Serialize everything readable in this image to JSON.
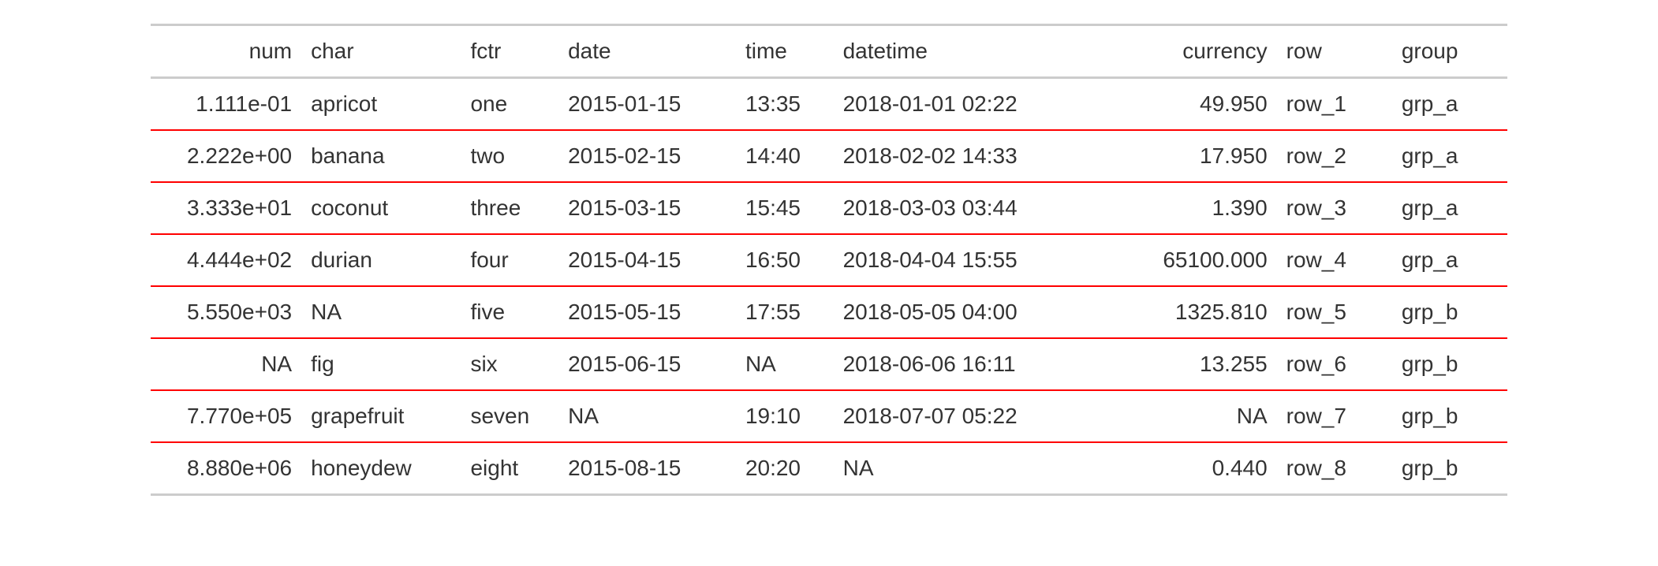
{
  "table": {
    "columns": [
      {
        "key": "num",
        "label": "num",
        "align": "right"
      },
      {
        "key": "char",
        "label": "char",
        "align": "left"
      },
      {
        "key": "fctr",
        "label": "fctr",
        "align": "left"
      },
      {
        "key": "date",
        "label": "date",
        "align": "left"
      },
      {
        "key": "time",
        "label": "time",
        "align": "left"
      },
      {
        "key": "datetime",
        "label": "datetime",
        "align": "left"
      },
      {
        "key": "currency",
        "label": "currency",
        "align": "right"
      },
      {
        "key": "row",
        "label": "row",
        "align": "left"
      },
      {
        "key": "group",
        "label": "group",
        "align": "left"
      }
    ],
    "rows": [
      {
        "num": "1.111e-01",
        "char": "apricot",
        "fctr": "one",
        "date": "2015-01-15",
        "time": "13:35",
        "datetime": "2018-01-01 02:22",
        "currency": "49.950",
        "row": "row_1",
        "group": "grp_a"
      },
      {
        "num": "2.222e+00",
        "char": "banana",
        "fctr": "two",
        "date": "2015-02-15",
        "time": "14:40",
        "datetime": "2018-02-02 14:33",
        "currency": "17.950",
        "row": "row_2",
        "group": "grp_a"
      },
      {
        "num": "3.333e+01",
        "char": "coconut",
        "fctr": "three",
        "date": "2015-03-15",
        "time": "15:45",
        "datetime": "2018-03-03 03:44",
        "currency": "1.390",
        "row": "row_3",
        "group": "grp_a"
      },
      {
        "num": "4.444e+02",
        "char": "durian",
        "fctr": "four",
        "date": "2015-04-15",
        "time": "16:50",
        "datetime": "2018-04-04 15:55",
        "currency": "65100.000",
        "row": "row_4",
        "group": "grp_a"
      },
      {
        "num": "5.550e+03",
        "char": "NA",
        "fctr": "five",
        "date": "2015-05-15",
        "time": "17:55",
        "datetime": "2018-05-05 04:00",
        "currency": "1325.810",
        "row": "row_5",
        "group": "grp_b"
      },
      {
        "num": "NA",
        "char": "fig",
        "fctr": "six",
        "date": "2015-06-15",
        "time": "NA",
        "datetime": "2018-06-06 16:11",
        "currency": "13.255",
        "row": "row_6",
        "group": "grp_b"
      },
      {
        "num": "7.770e+05",
        "char": "grapefruit",
        "fctr": "seven",
        "date": "NA",
        "time": "19:10",
        "datetime": "2018-07-07 05:22",
        "currency": "NA",
        "row": "row_7",
        "group": "grp_b"
      },
      {
        "num": "8.880e+06",
        "char": "honeydew",
        "fctr": "eight",
        "date": "2015-08-15",
        "time": "20:20",
        "datetime": "NA",
        "currency": "0.440",
        "row": "row_8",
        "group": "grp_b"
      }
    ],
    "styling": {
      "font_family": "-apple-system",
      "font_size": 28,
      "text_color": "#333333",
      "background_color": "#ffffff",
      "header_border_color": "#cccccc",
      "header_border_width": 3,
      "row_border_color": "#ff0000",
      "row_border_width": 2,
      "last_row_border_color": "#cccccc",
      "last_row_border_width": 3,
      "cell_padding_v": 16,
      "cell_padding_h": 12
    }
  }
}
